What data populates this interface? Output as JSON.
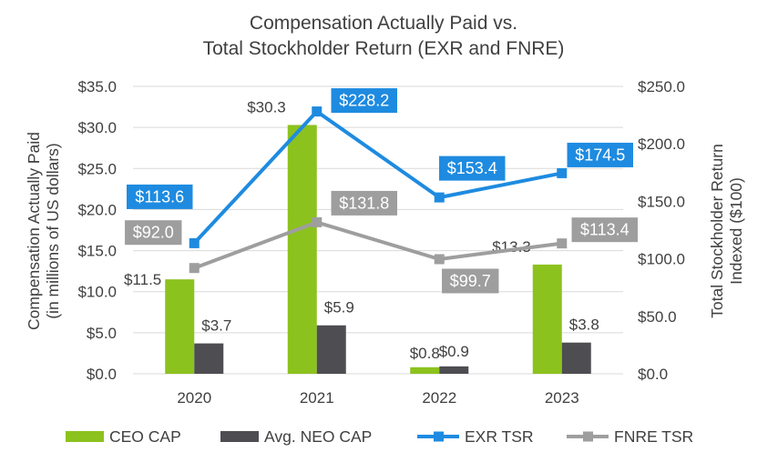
{
  "chart_data": {
    "type": "bar+line",
    "title_line1": "Compensation Actually Paid vs.",
    "title_line2": "Total Stockholder Return (EXR and FNRE)",
    "categories": [
      "2020",
      "2021",
      "2022",
      "2023"
    ],
    "y_left": {
      "title_line1": "Compensation Actually Paid",
      "title_line2": "(in millions of US dollars)",
      "ylim": [
        0,
        35
      ],
      "ticks": [
        0,
        5,
        10,
        15,
        20,
        25,
        30,
        35
      ],
      "tick_labels": [
        "$0.0",
        "$5.0",
        "$10.0",
        "$15.0",
        "$20.0",
        "$25.0",
        "$30.0",
        "$35.0"
      ]
    },
    "y_right": {
      "title_line1": "Total Stockholder Return",
      "title_line2": "Indexed ($100)",
      "ylim": [
        0,
        250
      ],
      "ticks": [
        0,
        50,
        100,
        150,
        200,
        250
      ],
      "tick_labels": [
        "$0.0",
        "$50.0",
        "$100.0",
        "$150.0",
        "$200.0",
        "$250.0"
      ]
    },
    "bar_series": [
      {
        "name": "CEO CAP",
        "color": "#8cc21e",
        "values": [
          11.5,
          30.3,
          0.8,
          13.3
        ],
        "labels": [
          "$11.5",
          "$30.3",
          "$0.8",
          "$13.3"
        ]
      },
      {
        "name": "Avg. NEO CAP",
        "color": "#4d4d52",
        "values": [
          3.7,
          5.9,
          0.9,
          3.8
        ],
        "labels": [
          "$3.7",
          "$5.9",
          "$0.9",
          "$3.8"
        ]
      }
    ],
    "line_series": [
      {
        "name": "EXR TSR",
        "color": "#1e8be0",
        "values": [
          113.6,
          228.2,
          153.4,
          174.5
        ],
        "labels": [
          "$113.6",
          "$228.2",
          "$153.4",
          "$174.5"
        ]
      },
      {
        "name": "FNRE TSR",
        "color": "#9e9e9e",
        "values": [
          92.0,
          131.8,
          99.7,
          113.4
        ],
        "labels": [
          "$92.0",
          "$131.8",
          "$99.7",
          "$113.4"
        ]
      }
    ],
    "legend_position": "bottom"
  }
}
